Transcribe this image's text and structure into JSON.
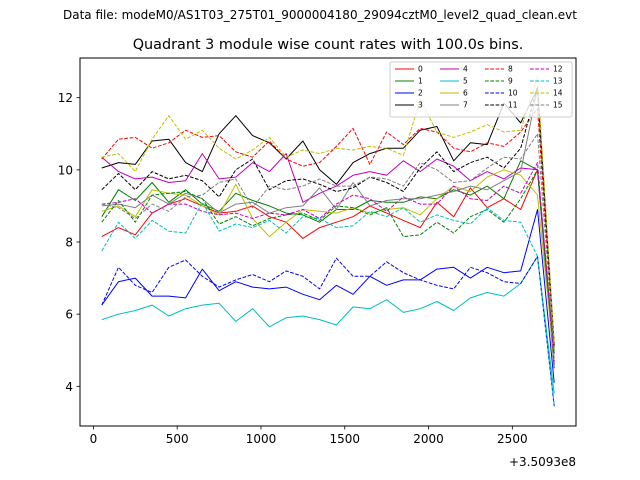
{
  "figure": {
    "suptitle": "Data file: modeM0/AS1T03_275T01_9000004180_29094cztM0_level2_quad_clean.evt"
  },
  "chart_data": {
    "type": "line",
    "title": "Quadrant 3 module wise count rates with 100.0s bins.",
    "xlabel": "",
    "ylabel": "",
    "x_offset_label": "+3.5093e8",
    "xlim": [
      -80,
      2880
    ],
    "ylim": [
      2.9,
      13.1
    ],
    "xticks": [
      0,
      500,
      1000,
      1500,
      2000,
      2500
    ],
    "yticks": [
      4,
      6,
      8,
      10,
      12
    ],
    "x": [
      50,
      150,
      250,
      350,
      450,
      550,
      650,
      750,
      850,
      950,
      1050,
      1150,
      1250,
      1350,
      1450,
      1550,
      1650,
      1750,
      1850,
      1950,
      2050,
      2150,
      2250,
      2350,
      2450,
      2550,
      2650,
      2750
    ],
    "legend_position": "top-right",
    "series": [
      {
        "name": "0",
        "color": "#ff0000",
        "dash": "solid",
        "values": [
          8.15,
          8.4,
          8.2,
          8.8,
          9.05,
          9.2,
          9.0,
          8.8,
          8.85,
          9.0,
          8.7,
          8.55,
          8.1,
          8.4,
          8.55,
          8.7,
          9.0,
          8.8,
          8.6,
          8.4,
          9.1,
          8.7,
          9.5,
          8.95,
          9.2,
          8.9,
          10.0,
          4.6
        ]
      },
      {
        "name": "1",
        "color": "#008000",
        "dash": "solid",
        "values": [
          8.7,
          9.45,
          9.15,
          9.65,
          9.1,
          9.45,
          9.05,
          8.85,
          9.35,
          9.15,
          9.0,
          8.8,
          8.75,
          8.55,
          8.9,
          8.9,
          9.15,
          9.1,
          9.1,
          9.25,
          9.2,
          9.45,
          9.3,
          9.55,
          9.2,
          10.25,
          10.0,
          4.5
        ]
      },
      {
        "name": "2",
        "color": "#0000ff",
        "dash": "solid",
        "values": [
          6.25,
          6.9,
          7.0,
          6.5,
          6.5,
          6.45,
          7.25,
          6.65,
          6.9,
          6.75,
          6.7,
          6.75,
          6.55,
          6.4,
          6.8,
          6.55,
          7.05,
          6.8,
          6.95,
          6.95,
          7.25,
          7.3,
          7.0,
          7.3,
          7.15,
          7.2,
          8.9,
          4.1
        ]
      },
      {
        "name": "3",
        "color": "#000000",
        "dash": "solid",
        "values": [
          10.05,
          10.2,
          10.15,
          10.8,
          10.85,
          10.2,
          9.95,
          11.0,
          11.5,
          10.95,
          10.75,
          10.3,
          10.8,
          10.0,
          9.6,
          10.2,
          10.45,
          10.6,
          10.6,
          11.1,
          11.2,
          10.25,
          10.75,
          10.7,
          11.85,
          11.3,
          12.25,
          5.1
        ]
      },
      {
        "name": "4",
        "color": "#bf00bf",
        "dash": "solid",
        "values": [
          10.35,
          9.95,
          9.75,
          9.8,
          9.65,
          9.7,
          10.45,
          9.75,
          9.8,
          10.2,
          9.95,
          10.45,
          9.1,
          9.35,
          9.55,
          9.85,
          9.95,
          9.85,
          10.25,
          9.95,
          10.3,
          10.1,
          9.7,
          9.95,
          9.75,
          10.05,
          10.0,
          4.9
        ]
      },
      {
        "name": "5",
        "color": "#00bfbf",
        "dash": "solid",
        "values": [
          5.85,
          6.0,
          6.1,
          6.25,
          5.95,
          6.15,
          6.25,
          6.3,
          5.8,
          6.15,
          5.65,
          5.9,
          5.95,
          5.85,
          5.7,
          6.2,
          6.15,
          6.4,
          6.05,
          6.15,
          6.35,
          6.1,
          6.45,
          6.6,
          6.5,
          6.85,
          7.6,
          3.8
        ]
      },
      {
        "name": "6",
        "color": "#bfbf00",
        "dash": "solid",
        "values": [
          8.85,
          9.0,
          8.7,
          9.45,
          9.35,
          9.3,
          9.0,
          8.75,
          9.6,
          8.65,
          8.15,
          8.55,
          8.9,
          8.85,
          8.8,
          8.95,
          8.8,
          8.9,
          8.95,
          8.75,
          9.2,
          9.55,
          9.4,
          9.8,
          10.0,
          9.85,
          9.3,
          4.7
        ]
      },
      {
        "name": "7",
        "color": "#808080",
        "dash": "solid",
        "values": [
          9.0,
          9.05,
          8.95,
          9.3,
          9.05,
          9.35,
          9.2,
          8.8,
          9.05,
          9.1,
          8.8,
          8.95,
          9.0,
          9.5,
          8.9,
          9.65,
          9.0,
          9.15,
          9.2,
          9.2,
          9.3,
          9.4,
          9.55,
          9.45,
          9.7,
          9.95,
          12.25,
          5.2
        ]
      },
      {
        "name": "8",
        "color": "#ff0000",
        "dash": "dashed",
        "values": [
          10.3,
          10.85,
          10.9,
          10.6,
          10.75,
          11.1,
          10.9,
          10.95,
          10.5,
          10.35,
          10.8,
          10.3,
          10.1,
          10.2,
          10.65,
          11.15,
          10.15,
          11.05,
          10.7,
          11.15,
          11.05,
          10.6,
          10.5,
          10.75,
          10.65,
          11.05,
          11.7,
          5.0
        ]
      },
      {
        "name": "9",
        "color": "#008000",
        "dash": "dashed",
        "values": [
          8.55,
          9.15,
          8.55,
          9.3,
          9.35,
          9.4,
          9.2,
          8.5,
          8.7,
          8.45,
          8.65,
          8.75,
          8.8,
          8.6,
          9.0,
          8.95,
          8.75,
          8.95,
          8.15,
          8.2,
          8.55,
          8.25,
          8.7,
          8.9,
          8.55,
          9.2,
          10.0,
          4.9
        ]
      },
      {
        "name": "10",
        "color": "#0000ff",
        "dash": "dashed",
        "values": [
          6.25,
          7.3,
          6.8,
          6.6,
          7.3,
          7.5,
          7.05,
          6.75,
          6.95,
          7.1,
          6.9,
          7.2,
          7.05,
          6.7,
          7.55,
          7.05,
          7.05,
          7.45,
          7.15,
          6.95,
          6.8,
          6.7,
          7.3,
          7.15,
          6.9,
          6.85,
          7.6,
          3.45
        ]
      },
      {
        "name": "11",
        "color": "#000000",
        "dash": "dashed",
        "values": [
          9.45,
          9.9,
          9.45,
          9.95,
          9.75,
          9.85,
          9.7,
          9.25,
          10.0,
          10.3,
          9.45,
          9.7,
          9.75,
          9.6,
          9.4,
          9.5,
          9.8,
          9.65,
          9.4,
          10.05,
          10.5,
          9.95,
          10.2,
          10.35,
          10.05,
          10.6,
          12.3,
          5.1
        ]
      },
      {
        "name": "12",
        "color": "#bf00bf",
        "dash": "dashed",
        "values": [
          9.05,
          9.1,
          9.2,
          8.8,
          9.05,
          9.05,
          8.85,
          8.75,
          8.8,
          8.65,
          8.8,
          8.75,
          8.9,
          8.65,
          9.05,
          9.3,
          9.2,
          8.85,
          9.25,
          9.05,
          9.05,
          9.55,
          9.2,
          9.15,
          9.55,
          9.35,
          10.2,
          4.7
        ]
      },
      {
        "name": "13",
        "color": "#00bfbf",
        "dash": "dashed",
        "values": [
          7.75,
          8.55,
          8.1,
          8.6,
          8.3,
          8.25,
          9.1,
          8.3,
          8.5,
          8.4,
          8.6,
          8.25,
          8.7,
          8.65,
          8.4,
          8.45,
          8.85,
          8.7,
          8.95,
          8.55,
          8.75,
          8.6,
          8.5,
          8.95,
          8.6,
          8.55,
          7.6,
          3.5
        ]
      },
      {
        "name": "14",
        "color": "#bfbf00",
        "dash": "dashed",
        "values": [
          10.35,
          10.45,
          9.95,
          10.85,
          11.5,
          10.85,
          11.1,
          10.6,
          10.3,
          10.55,
          10.9,
          10.35,
          10.55,
          10.45,
          10.6,
          10.55,
          10.65,
          10.6,
          10.4,
          11.95,
          11.05,
          10.9,
          11.05,
          11.25,
          11.05,
          11.1,
          12.6,
          5.2
        ]
      },
      {
        "name": "15",
        "color": "#808080",
        "dash": "dashed",
        "values": [
          9.05,
          8.95,
          8.65,
          9.05,
          8.85,
          9.25,
          9.3,
          9.65,
          9.75,
          8.95,
          9.55,
          9.45,
          9.55,
          9.75,
          9.55,
          9.55,
          9.8,
          9.75,
          9.55,
          10.2,
          10.0,
          9.65,
          9.7,
          10.05,
          10.35,
          10.3,
          11.0,
          5.0
        ]
      }
    ]
  }
}
